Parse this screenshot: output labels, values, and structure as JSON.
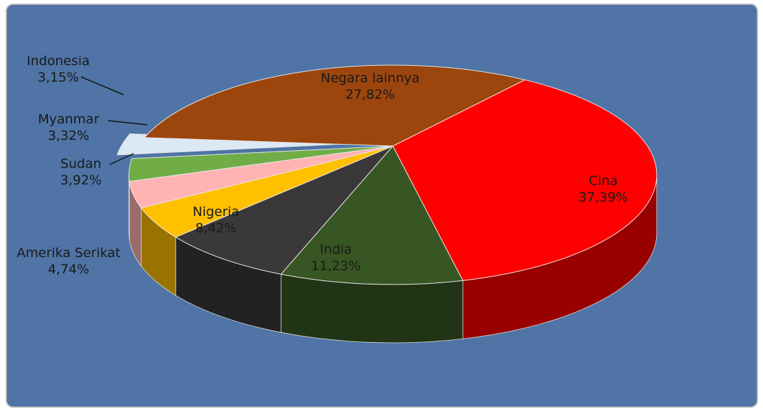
{
  "chart_data": {
    "type": "pie",
    "categories": [
      "Cina",
      "India",
      "Nigeria",
      "Amerika Serikat",
      "Sudan",
      "Myanmar",
      "Indonesia",
      "Negara lainnya"
    ],
    "values": [
      37.39,
      11.23,
      8.42,
      4.74,
      3.92,
      3.32,
      3.15,
      27.82
    ],
    "value_labels": [
      "37,39%",
      "11,23%",
      "8,42%",
      "4,74%",
      "3,92%",
      "3,32%",
      "3,15%",
      "27,82%"
    ],
    "colors": [
      "#ff0000",
      "#375623",
      "#3a3838",
      "#ffc000",
      "#ffb3b3",
      "#70ad47",
      "#dde8f5",
      "#9c460d"
    ]
  }
}
